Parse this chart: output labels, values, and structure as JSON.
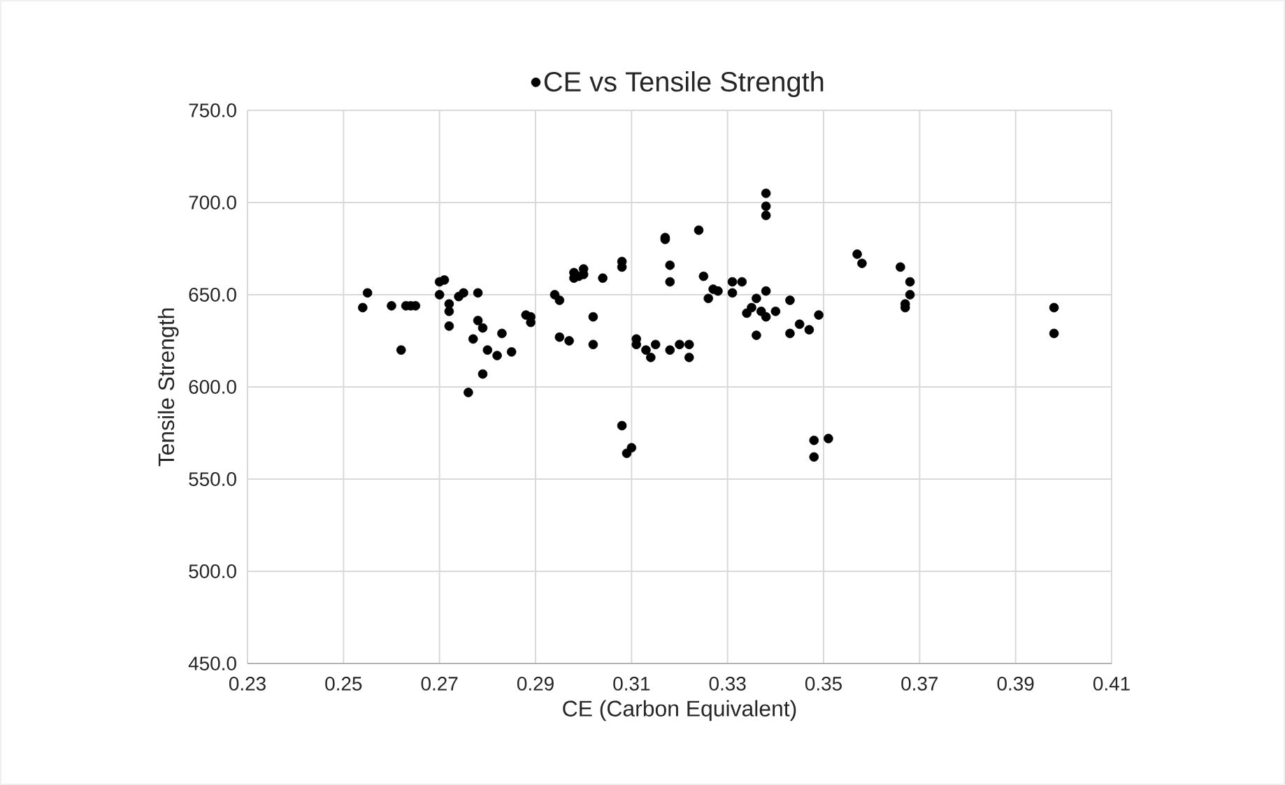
{
  "chart_data": {
    "type": "scatter",
    "xlabel": "CE (Carbon Equivalent)",
    "ylabel": "Tensile Strength",
    "series": [
      {
        "name": "CE vs Tensile Strength",
        "color": "#000000",
        "x": [
          0.254,
          0.255,
          0.26,
          0.262,
          0.263,
          0.264,
          0.265,
          0.27,
          0.27,
          0.271,
          0.272,
          0.272,
          0.272,
          0.274,
          0.275,
          0.276,
          0.277,
          0.278,
          0.278,
          0.279,
          0.279,
          0.28,
          0.282,
          0.283,
          0.285,
          0.288,
          0.289,
          0.289,
          0.294,
          0.295,
          0.295,
          0.297,
          0.298,
          0.298,
          0.299,
          0.3,
          0.3,
          0.302,
          0.302,
          0.304,
          0.308,
          0.308,
          0.308,
          0.309,
          0.31,
          0.311,
          0.311,
          0.313,
          0.314,
          0.315,
          0.317,
          0.317,
          0.318,
          0.318,
          0.318,
          0.32,
          0.322,
          0.322,
          0.324,
          0.325,
          0.326,
          0.327,
          0.328,
          0.331,
          0.331,
          0.333,
          0.334,
          0.335,
          0.336,
          0.336,
          0.337,
          0.338,
          0.338,
          0.338,
          0.338,
          0.338,
          0.34,
          0.343,
          0.343,
          0.345,
          0.347,
          0.348,
          0.348,
          0.349,
          0.351,
          0.357,
          0.358,
          0.366,
          0.367,
          0.367,
          0.368,
          0.368,
          0.398,
          0.398
        ],
        "values": [
          643,
          651,
          644,
          620,
          644,
          644,
          644,
          650,
          657,
          658,
          641,
          633,
          645,
          649,
          651,
          597,
          626,
          651,
          636,
          607,
          632,
          620,
          617,
          629,
          619,
          639,
          638,
          635,
          650,
          647,
          627,
          625,
          659,
          662,
          660,
          664,
          661,
          638,
          623,
          659,
          665,
          668,
          579,
          564,
          567,
          626,
          623,
          620,
          616,
          623,
          681,
          680,
          666,
          657,
          620,
          623,
          616,
          623,
          685,
          660,
          648,
          653,
          652,
          657,
          651,
          657,
          640,
          643,
          628,
          648,
          641,
          705,
          698,
          693,
          652,
          638,
          641,
          647,
          629,
          634,
          631,
          571,
          562,
          639,
          572,
          672,
          667,
          665,
          643,
          645,
          650,
          657,
          643,
          629
        ]
      }
    ],
    "xlim": [
      0.23,
      0.41
    ],
    "xticks": [
      0.23,
      0.25,
      0.27,
      0.29,
      0.31,
      0.33,
      0.35,
      0.37,
      0.39,
      0.41
    ],
    "ylim": [
      450,
      750
    ],
    "yticks": [
      {
        "value": 450,
        "label": "450.0"
      },
      {
        "value": 500,
        "label": "500.0"
      },
      {
        "value": 550,
        "label": "550.0"
      },
      {
        "value": 600,
        "label": "600.0"
      },
      {
        "value": 650,
        "label": "650.0"
      },
      {
        "value": 700,
        "label": "700.0"
      },
      {
        "value": 750,
        "label": "750.0"
      }
    ],
    "grid": true,
    "legend": "top",
    "marker": "circle"
  }
}
